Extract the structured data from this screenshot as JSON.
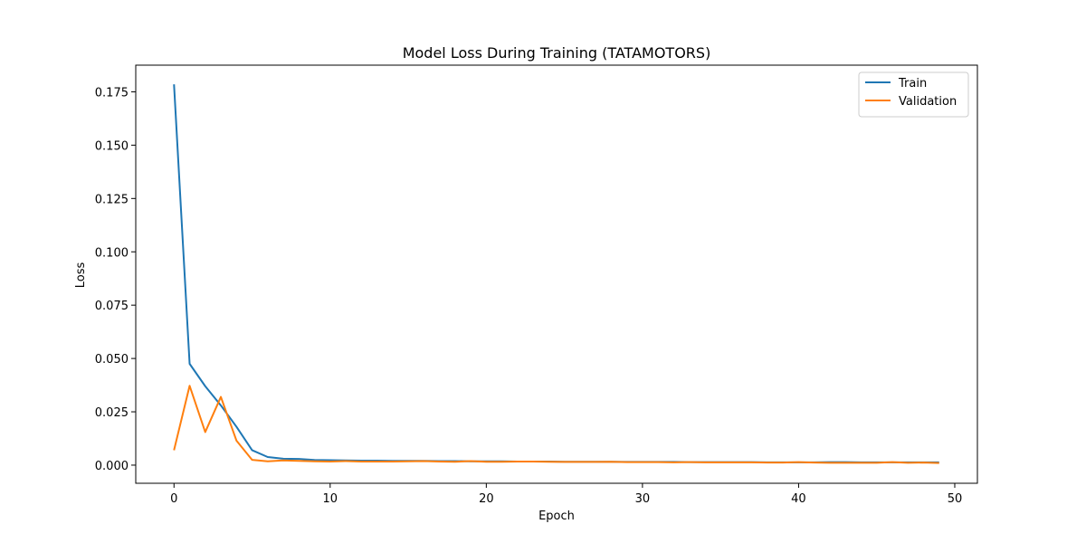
{
  "chart_data": {
    "type": "line",
    "title": "Model Loss During Training (TATAMOTORS)",
    "xlabel": "Epoch",
    "ylabel": "Loss",
    "xlim": [
      -2.45,
      51.45
    ],
    "ylim": [
      -0.0085,
      0.1875
    ],
    "xticks": [
      0,
      10,
      20,
      30,
      40,
      50
    ],
    "xtick_labels": [
      "0",
      "10",
      "20",
      "30",
      "40",
      "50"
    ],
    "yticks": [
      0.0,
      0.025,
      0.05,
      0.075,
      0.1,
      0.125,
      0.15,
      0.175
    ],
    "ytick_labels": [
      "0.000",
      "0.025",
      "0.050",
      "0.075",
      "0.100",
      "0.125",
      "0.150",
      "0.175"
    ],
    "grid": false,
    "legend": "top-right",
    "x": [
      0,
      1,
      2,
      3,
      4,
      5,
      6,
      7,
      8,
      9,
      10,
      11,
      12,
      13,
      14,
      15,
      16,
      17,
      18,
      19,
      20,
      21,
      22,
      23,
      24,
      25,
      26,
      27,
      28,
      29,
      30,
      31,
      32,
      33,
      34,
      35,
      36,
      37,
      38,
      39,
      40,
      41,
      42,
      43,
      44,
      45,
      46,
      47,
      48,
      49
    ],
    "series": [
      {
        "name": "Train",
        "color": "#1f77b4",
        "values": [
          0.1785,
          0.0475,
          0.037,
          0.028,
          0.018,
          0.007,
          0.0038,
          0.003,
          0.0029,
          0.0024,
          0.0023,
          0.0022,
          0.0021,
          0.0021,
          0.002,
          0.002,
          0.002,
          0.0019,
          0.0019,
          0.0018,
          0.0018,
          0.0018,
          0.0017,
          0.0017,
          0.0017,
          0.0016,
          0.0016,
          0.0016,
          0.0016,
          0.0015,
          0.0015,
          0.0015,
          0.0015,
          0.0014,
          0.0014,
          0.0014,
          0.0014,
          0.0014,
          0.0013,
          0.0013,
          0.0013,
          0.0013,
          0.0014,
          0.0014,
          0.0013,
          0.0013,
          0.0013,
          0.0013,
          0.0013,
          0.0013
        ]
      },
      {
        "name": "Validation",
        "color": "#ff7f0e",
        "values": [
          0.007,
          0.0372,
          0.0155,
          0.032,
          0.0115,
          0.0025,
          0.0018,
          0.0022,
          0.002,
          0.0018,
          0.0017,
          0.0019,
          0.0017,
          0.0017,
          0.0017,
          0.0018,
          0.0019,
          0.0017,
          0.0016,
          0.0019,
          0.0016,
          0.0016,
          0.0017,
          0.0017,
          0.0016,
          0.0015,
          0.0015,
          0.0015,
          0.0016,
          0.0014,
          0.0014,
          0.0014,
          0.0013,
          0.0014,
          0.0013,
          0.0013,
          0.0013,
          0.0013,
          0.0012,
          0.0012,
          0.0014,
          0.0012,
          0.0011,
          0.0011,
          0.0011,
          0.0011,
          0.0014,
          0.0011,
          0.0012,
          0.001
        ]
      }
    ]
  }
}
